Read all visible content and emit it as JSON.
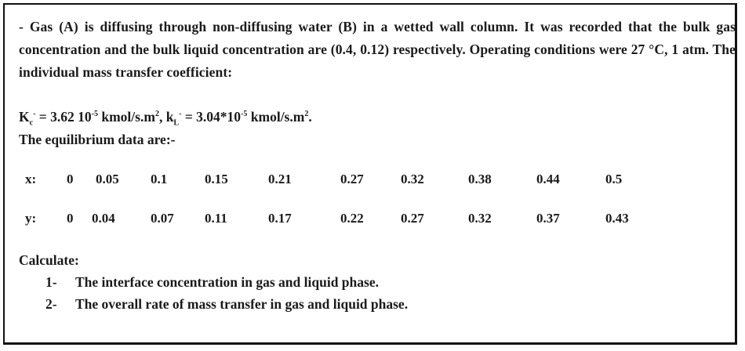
{
  "problem": {
    "intro": "- Gas (A) is diffusing through non-diffusing water (B) in a wetted wall column. It was recorded that the bulk gas concentration and the bulk liquid concentration are (0.4, 0.12) respectively. Operating conditions were 27 °C, 1 atm. The individual mass transfer coefficient:",
    "coeff_kc_main": "K",
    "coeff_kc_sub": "c",
    "coeff_kc_sup1": "-",
    "coeff_kc_value": " = 3.62 10",
    "coeff_kc_exp": "-5",
    "coeff_kc_unit": " kmol/s.m",
    "coeff_kc_unit_exp": "2",
    "coeff_sep": ",  ",
    "coeff_kl_main": "k",
    "coeff_kl_sub": "L",
    "coeff_kl_sup1": "-",
    "coeff_kl_value": " = 3.04*10",
    "coeff_kl_exp": "-5",
    "coeff_kl_unit": " kmol/s.m",
    "coeff_kl_unit_exp": "2",
    "coeff_end": ".",
    "equilibrium_title": "The equilibrium data are:-"
  },
  "equilibrium": {
    "x_label": "x:",
    "x_values": [
      "0",
      "0.05",
      "0.1",
      "0.15",
      "0.21",
      "0.27",
      "0.32",
      "0.38",
      "0.44",
      "0.5"
    ],
    "y_label": "y:",
    "y_values": [
      "0",
      "0.04",
      "0.07",
      "0.11",
      "0.17",
      "0.22",
      "0.27",
      "0.32",
      "0.37",
      "0.43"
    ]
  },
  "calculate": {
    "title": "Calculate:",
    "items": [
      {
        "num": "1-",
        "text": "The interface concentration in gas and liquid phase."
      },
      {
        "num": "2-",
        "text": "The overall rate of mass transfer in gas and liquid phase."
      }
    ]
  }
}
